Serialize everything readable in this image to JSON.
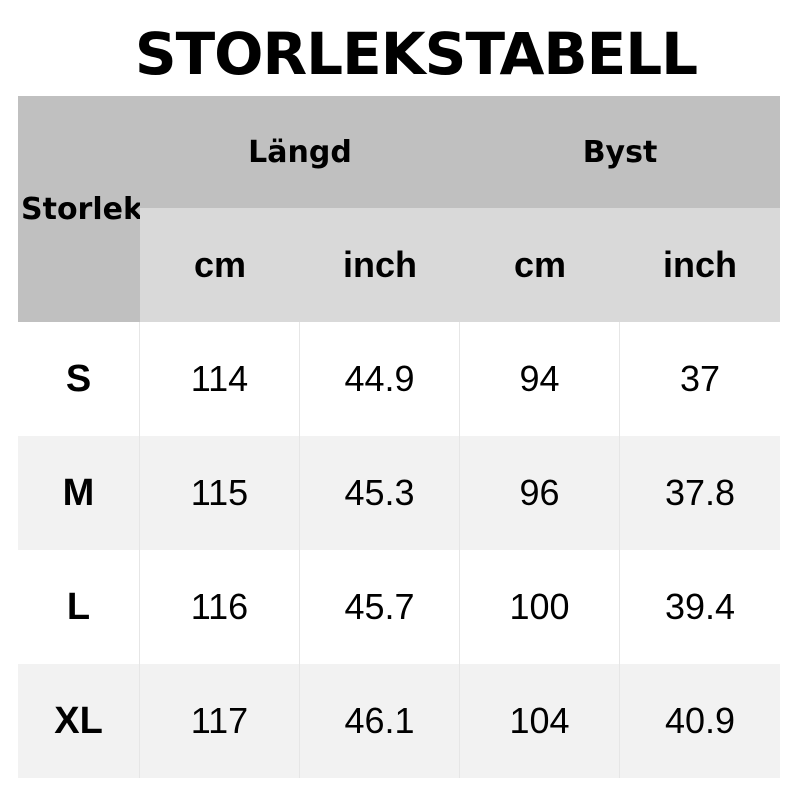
{
  "title": "STORLEKSTABELL",
  "header": {
    "size": "Storlek",
    "groups": [
      "Längd",
      "Byst"
    ],
    "units": [
      "cm",
      "inch",
      "cm",
      "inch"
    ]
  },
  "rows": [
    {
      "size": "S",
      "values": [
        "114",
        "44.9",
        "94",
        "37"
      ]
    },
    {
      "size": "M",
      "values": [
        "115",
        "45.3",
        "96",
        "37.8"
      ]
    },
    {
      "size": "L",
      "values": [
        "116",
        "45.7",
        "100",
        "39.4"
      ]
    },
    {
      "size": "XL",
      "values": [
        "117",
        "46.1",
        "104",
        "40.9"
      ]
    }
  ]
}
